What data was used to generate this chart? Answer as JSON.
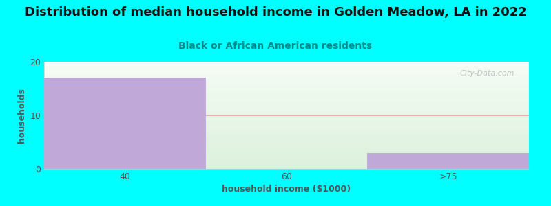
{
  "title": "Distribution of median household income in Golden Meadow, LA in 2022",
  "subtitle": "Black or African American residents",
  "xlabel": "household income ($1000)",
  "ylabel": "households",
  "categories": [
    "40",
    "60",
    ">75"
  ],
  "values": [
    17,
    0,
    3
  ],
  "bar_color": "#C0A8D8",
  "background_color": "#00FFFF",
  "plot_bg_top": "#F5F5F0",
  "plot_bg_bottom": "#E8F5E8",
  "ylim": [
    0,
    20
  ],
  "yticks": [
    0,
    10,
    20
  ],
  "title_fontsize": 13,
  "subtitle_fontsize": 10,
  "axis_label_fontsize": 9,
  "tick_fontsize": 9,
  "watermark": "City-Data.com",
  "subtitle_color": "#008B8B",
  "title_color": "#111111",
  "axis_color": "#555555",
  "gridline_color": "#E8B0B0",
  "bar_edge_color": "none",
  "xlim": [
    -0.5,
    2.5
  ]
}
